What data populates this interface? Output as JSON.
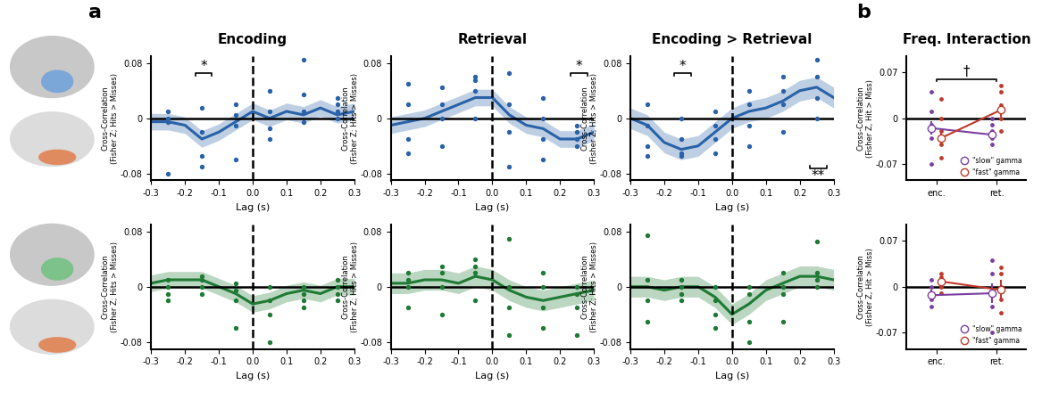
{
  "panel_labels": [
    "a",
    "b"
  ],
  "chart_data": [
    {
      "type": "line",
      "title": "Encoding",
      "xlabel": "Lag (s)",
      "ylabel": "Cross-Correlation\n(Fisher Z; Hits > Misses)",
      "color": "#2a62a8",
      "xlim": [
        -0.3,
        0.3
      ],
      "ylim": [
        -0.09,
        0.09
      ],
      "xticks": [
        -0.3,
        -0.2,
        -0.1,
        0.0,
        0.1,
        0.2,
        0.3
      ],
      "yticks": [
        -0.08,
        0,
        0.08
      ],
      "x": [
        -0.3,
        -0.25,
        -0.2,
        -0.15,
        -0.1,
        -0.05,
        0.0,
        0.05,
        0.1,
        0.15,
        0.2,
        0.25,
        0.3
      ],
      "values": [
        -0.005,
        -0.005,
        -0.01,
        -0.03,
        -0.02,
        -0.005,
        0.01,
        0.0,
        0.01,
        0.005,
        0.015,
        0.005,
        0.01
      ],
      "error": [
        0.012,
        0.012,
        0.012,
        0.012,
        0.012,
        0.012,
        0.012,
        0.012,
        0.012,
        0.012,
        0.012,
        0.012,
        0.012
      ],
      "points": {
        "x": [
          -0.25,
          -0.25,
          -0.25,
          -0.25,
          -0.15,
          -0.15,
          -0.15,
          -0.15,
          -0.05,
          -0.05,
          -0.05,
          -0.05,
          0.05,
          0.05,
          0.05,
          0.05,
          0.15,
          0.15,
          0.15,
          0.15,
          0.25,
          0.25,
          0.25,
          0.25
        ],
        "y": [
          -0.08,
          -0.005,
          0.0,
          0.01,
          -0.07,
          -0.055,
          -0.02,
          0.015,
          -0.06,
          -0.01,
          0.005,
          0.02,
          -0.03,
          -0.015,
          0.01,
          0.04,
          -0.005,
          0.01,
          0.035,
          0.085,
          0.0,
          0.01,
          0.02,
          0.03
        ]
      },
      "annotations": [
        {
          "text": "*",
          "x": [
            -0.17,
            -0.12
          ],
          "y": 0.065
        }
      ]
    },
    {
      "type": "line",
      "title": "Retrieval",
      "xlabel": "Lag (s)",
      "ylabel": "Cross-Correlation\n(Fisher Z; Hits > Misses)",
      "color": "#2a62a8",
      "xlim": [
        -0.3,
        0.3
      ],
      "ylim": [
        -0.09,
        0.09
      ],
      "xticks": [
        -0.3,
        -0.2,
        -0.1,
        0.0,
        0.1,
        0.2,
        0.3
      ],
      "yticks": [
        -0.08,
        0,
        0.08
      ],
      "x": [
        -0.3,
        -0.25,
        -0.2,
        -0.15,
        -0.1,
        -0.05,
        0.0,
        0.05,
        0.1,
        0.15,
        0.2,
        0.25,
        0.3
      ],
      "values": [
        -0.01,
        -0.005,
        0.0,
        0.01,
        0.02,
        0.03,
        0.03,
        0.005,
        -0.01,
        -0.015,
        -0.03,
        -0.03,
        -0.02
      ],
      "error": [
        0.012,
        0.012,
        0.012,
        0.012,
        0.012,
        0.012,
        0.012,
        0.012,
        0.012,
        0.012,
        0.012,
        0.012,
        0.012
      ],
      "points": {
        "x": [
          -0.25,
          -0.25,
          -0.25,
          -0.25,
          -0.15,
          -0.15,
          -0.15,
          -0.15,
          -0.05,
          -0.05,
          -0.05,
          -0.05,
          0.05,
          0.05,
          0.05,
          0.05,
          0.15,
          0.15,
          0.15,
          0.15,
          0.25,
          0.25,
          0.25,
          0.25
        ],
        "y": [
          -0.05,
          -0.03,
          0.02,
          0.05,
          -0.04,
          0.0,
          0.02,
          0.045,
          0.0,
          0.04,
          0.055,
          0.06,
          -0.07,
          -0.02,
          0.02,
          0.065,
          -0.06,
          -0.03,
          0.0,
          0.03,
          -0.04,
          -0.03,
          -0.02,
          -0.01
        ]
      },
      "annotations": [
        {
          "text": "*",
          "x": [
            0.23,
            0.28
          ],
          "y": 0.065
        }
      ]
    },
    {
      "type": "line",
      "title": "Encoding > Retrieval",
      "xlabel": "Lag (s)",
      "ylabel": "Cross-Correlation\n(Fisher Z; Hits > Misses)",
      "color": "#2a62a8",
      "xlim": [
        -0.3,
        0.3
      ],
      "ylim": [
        -0.09,
        0.09
      ],
      "xticks": [
        -0.3,
        -0.2,
        -0.1,
        0.0,
        0.1,
        0.2,
        0.3
      ],
      "yticks": [
        -0.08,
        0,
        0.08
      ],
      "x": [
        -0.3,
        -0.25,
        -0.2,
        -0.15,
        -0.1,
        -0.05,
        0.0,
        0.05,
        0.1,
        0.15,
        0.2,
        0.25,
        0.3
      ],
      "values": [
        0.0,
        -0.01,
        -0.035,
        -0.045,
        -0.04,
        -0.02,
        0.0,
        0.01,
        0.015,
        0.025,
        0.04,
        0.045,
        0.03
      ],
      "error": [
        0.015,
        0.015,
        0.015,
        0.015,
        0.015,
        0.015,
        0.015,
        0.015,
        0.015,
        0.015,
        0.015,
        0.015,
        0.015
      ],
      "points": {
        "x": [
          -0.25,
          -0.25,
          -0.25,
          -0.25,
          -0.15,
          -0.15,
          -0.15,
          -0.15,
          -0.05,
          -0.05,
          -0.05,
          -0.05,
          0.05,
          0.05,
          0.05,
          0.05,
          0.15,
          0.15,
          0.15,
          0.15,
          0.25,
          0.25,
          0.25,
          0.25
        ],
        "y": [
          -0.055,
          -0.04,
          -0.01,
          0.02,
          -0.055,
          -0.05,
          -0.03,
          0.0,
          -0.05,
          -0.03,
          -0.01,
          0.01,
          -0.04,
          -0.01,
          0.02,
          0.04,
          -0.02,
          0.02,
          0.04,
          0.06,
          0.0,
          0.03,
          0.06,
          0.085
        ]
      },
      "annotations": [
        {
          "text": "*",
          "x": [
            -0.17,
            -0.12
          ],
          "y": 0.065
        },
        {
          "text": "**",
          "x": [
            0.23,
            0.28
          ],
          "y": -0.072
        }
      ]
    },
    {
      "type": "line",
      "xlabel": "Lag (s)",
      "ylabel": "Cross-Correlation\n(Fisher Z; Hits > Misses)",
      "color": "#1e7a34",
      "xlim": [
        -0.3,
        0.3
      ],
      "ylim": [
        -0.09,
        0.09
      ],
      "xticks": [
        -0.3,
        -0.2,
        -0.1,
        0.0,
        0.1,
        0.2,
        0.3
      ],
      "yticks": [
        -0.08,
        0,
        0.08
      ],
      "x": [
        -0.3,
        -0.25,
        -0.2,
        -0.15,
        -0.1,
        -0.05,
        0.0,
        0.05,
        0.1,
        0.15,
        0.2,
        0.25,
        0.3
      ],
      "values": [
        0.005,
        0.01,
        0.01,
        0.01,
        0.0,
        -0.01,
        -0.025,
        -0.02,
        -0.01,
        -0.005,
        -0.01,
        0.0,
        0.0
      ],
      "error": [
        0.012,
        0.012,
        0.012,
        0.012,
        0.012,
        0.012,
        0.012,
        0.012,
        0.012,
        0.012,
        0.012,
        0.012,
        0.012
      ],
      "points": {
        "x": [
          -0.25,
          -0.25,
          -0.25,
          -0.25,
          -0.15,
          -0.15,
          -0.15,
          -0.15,
          -0.05,
          -0.05,
          -0.05,
          -0.05,
          0.05,
          0.05,
          0.05,
          0.05,
          0.15,
          0.15,
          0.15,
          0.15,
          0.25,
          0.25,
          0.25,
          0.25
        ],
        "y": [
          -0.02,
          -0.01,
          0.0,
          0.01,
          -0.01,
          0.0,
          0.01,
          0.015,
          -0.06,
          -0.02,
          -0.005,
          0.005,
          -0.08,
          -0.04,
          -0.02,
          0.0,
          -0.03,
          -0.02,
          -0.01,
          0.0,
          -0.02,
          -0.01,
          0.0,
          0.01
        ]
      },
      "annotations": []
    },
    {
      "type": "line",
      "xlabel": "Lag (s)",
      "ylabel": "Cross-Correlation\n(Fisher Z; Hits > Misses)",
      "color": "#1e7a34",
      "xlim": [
        -0.3,
        0.3
      ],
      "ylim": [
        -0.09,
        0.09
      ],
      "xticks": [
        -0.3,
        -0.2,
        -0.1,
        0.0,
        0.1,
        0.2,
        0.3
      ],
      "yticks": [
        -0.08,
        0,
        0.08
      ],
      "x": [
        -0.3,
        -0.25,
        -0.2,
        -0.15,
        -0.1,
        -0.05,
        0.0,
        0.05,
        0.1,
        0.15,
        0.2,
        0.25,
        0.3
      ],
      "values": [
        0.005,
        0.005,
        0.01,
        0.01,
        0.005,
        0.015,
        0.01,
        -0.005,
        -0.015,
        -0.02,
        -0.015,
        -0.01,
        -0.005
      ],
      "error": [
        0.015,
        0.015,
        0.015,
        0.015,
        0.015,
        0.015,
        0.015,
        0.015,
        0.015,
        0.015,
        0.015,
        0.015,
        0.015
      ],
      "points": {
        "x": [
          -0.25,
          -0.25,
          -0.25,
          -0.25,
          -0.15,
          -0.15,
          -0.15,
          -0.15,
          -0.05,
          -0.05,
          -0.05,
          -0.05,
          0.05,
          0.05,
          0.05,
          0.05,
          0.15,
          0.15,
          0.15,
          0.15,
          0.25,
          0.25,
          0.25,
          0.25
        ],
        "y": [
          -0.03,
          0.0,
          0.01,
          0.02,
          -0.04,
          0.0,
          0.02,
          0.03,
          -0.02,
          0.02,
          0.03,
          0.04,
          -0.07,
          -0.03,
          0.0,
          0.07,
          -0.06,
          -0.03,
          0.0,
          0.02,
          -0.07,
          -0.03,
          -0.01,
          0.0
        ]
      },
      "annotations": []
    },
    {
      "type": "line",
      "xlabel": "Lag (s)",
      "ylabel": "Cross-Correlation\n(Fisher Z; Hits > Misses)",
      "color": "#1e7a34",
      "xlim": [
        -0.3,
        0.3
      ],
      "ylim": [
        -0.09,
        0.09
      ],
      "xticks": [
        -0.3,
        -0.2,
        -0.1,
        0.0,
        0.1,
        0.2,
        0.3
      ],
      "yticks": [
        -0.08,
        0,
        0.08
      ],
      "x": [
        -0.3,
        -0.25,
        -0.2,
        -0.15,
        -0.1,
        -0.05,
        0.0,
        0.05,
        0.1,
        0.15,
        0.2,
        0.25,
        0.3
      ],
      "values": [
        0.0,
        0.0,
        -0.005,
        0.0,
        0.0,
        -0.015,
        -0.04,
        -0.025,
        -0.005,
        0.005,
        0.015,
        0.015,
        0.01
      ],
      "error": [
        0.015,
        0.015,
        0.015,
        0.015,
        0.015,
        0.015,
        0.015,
        0.015,
        0.015,
        0.015,
        0.015,
        0.015,
        0.015
      ],
      "points": {
        "x": [
          -0.25,
          -0.25,
          -0.25,
          -0.25,
          -0.15,
          -0.15,
          -0.15,
          -0.15,
          -0.05,
          -0.05,
          -0.05,
          -0.05,
          0.05,
          0.05,
          0.05,
          0.05,
          0.15,
          0.15,
          0.15,
          0.15,
          0.25,
          0.25,
          0.25,
          0.25
        ],
        "y": [
          -0.05,
          -0.02,
          0.01,
          0.075,
          -0.02,
          -0.01,
          0.0,
          0.01,
          -0.06,
          -0.04,
          -0.02,
          0.0,
          -0.08,
          -0.05,
          -0.01,
          0.0,
          -0.05,
          -0.01,
          0.0,
          0.02,
          0.0,
          0.01,
          0.02,
          0.065
        ]
      },
      "annotations": []
    },
    {
      "type": "line",
      "title": "Freq. Interaction",
      "ylabel": "Cross-Correlation\n(Fisher Z, Hit > Miss)",
      "categories": [
        "enc.",
        "ret."
      ],
      "ylim": [
        -0.095,
        0.095
      ],
      "yticks": [
        -0.07,
        0,
        0.07
      ],
      "legend": "lower right",
      "series": [
        {
          "name": "\"slow\" gamma",
          "color": "#7b3f9e",
          "values": [
            -0.015,
            -0.025
          ],
          "error": [
            0.01,
            0.005
          ],
          "points": [
            [
              -0.07,
              -0.03,
              -0.01,
              0.01,
              0.04
            ],
            [
              -0.04,
              -0.03,
              -0.02,
              -0.01,
              0.0
            ]
          ]
        },
        {
          "name": "\"fast\" gamma",
          "color": "#c0392b",
          "values": [
            -0.03,
            0.013
          ],
          "error": [
            0.008,
            0.01
          ],
          "points": [
            [
              -0.06,
              -0.04,
              -0.02,
              0.0,
              0.03
            ],
            [
              -0.02,
              0.0,
              0.02,
              0.04,
              0.05
            ]
          ]
        }
      ],
      "annotations": [
        {
          "text": "†",
          "x": [
            0,
            1
          ],
          "y": 0.06
        }
      ]
    },
    {
      "type": "line",
      "ylabel": "Cross-Correlation\n(Fisher Z, Hit > Miss)",
      "categories": [
        "enc.",
        "ret."
      ],
      "ylim": [
        -0.095,
        0.095
      ],
      "yticks": [
        -0.07,
        0,
        0.07
      ],
      "legend": "lower right",
      "series": [
        {
          "name": "\"slow\" gamma",
          "color": "#7b3f9e",
          "values": [
            -0.013,
            -0.01
          ],
          "error": [
            0.008,
            0.015
          ],
          "points": [
            [
              -0.03,
              -0.02,
              -0.01,
              0.0,
              0.01
            ],
            [
              -0.07,
              -0.03,
              -0.01,
              0.02,
              0.04
            ]
          ]
        },
        {
          "name": "\"fast\" gamma",
          "color": "#c0392b",
          "values": [
            0.008,
            -0.005
          ],
          "error": [
            0.006,
            0.015
          ],
          "points": [
            [
              -0.01,
              0.0,
              0.01,
              0.015,
              0.02
            ],
            [
              -0.04,
              -0.02,
              0.0,
              0.02,
              0.03
            ]
          ]
        }
      ],
      "annotations": []
    }
  ]
}
